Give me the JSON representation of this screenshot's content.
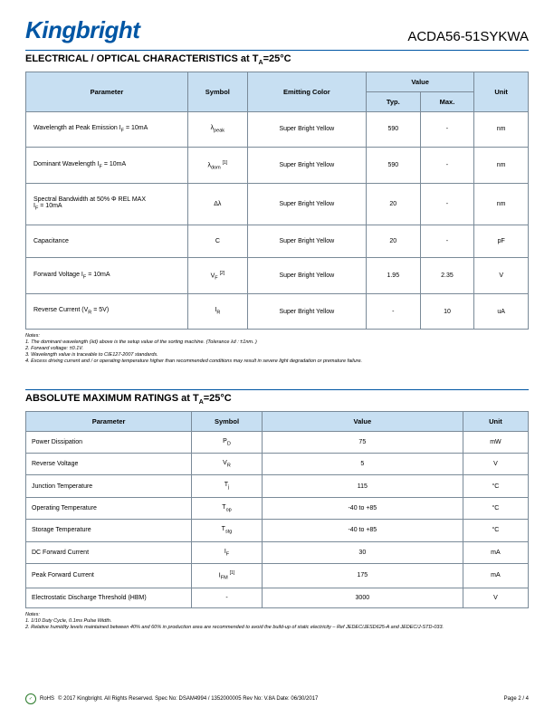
{
  "header": {
    "logo_text": "Kingbright",
    "part_number": "ACDA56-51SYKWA"
  },
  "section1": {
    "title_prefix": "ELECTRICAL / OPTICAL CHARACTERISTICS at T",
    "title_sub": "A",
    "title_suffix": "=25°C",
    "headers": {
      "parameter": "Parameter",
      "symbol": "Symbol",
      "emitting_color": "Emitting Color",
      "value": "Value",
      "typ": "Typ.",
      "max": "Max.",
      "unit": "Unit"
    },
    "col_widths": {
      "parameter": "30%",
      "symbol": "11%",
      "emitting_color": "22%",
      "typ": "10%",
      "max": "10%",
      "unit": "10%"
    },
    "header_bg": "#c7dff2",
    "border_color": "#7a8a98",
    "rows": [
      {
        "parameter_html": "Wavelength at Peak Emission I<span class='sub'>F</span> = 10mA",
        "symbol_html": "λ<span class='sub'>peak</span>",
        "color": "Super Bright Yellow",
        "typ": "590",
        "max": "-",
        "unit": "nm"
      },
      {
        "parameter_html": "Dominant Wavelength I<span class='sub'>F</span> = 10mA",
        "symbol_html": "λ<span class='sub'>dom</span> <span class='sup'>[1]</span>",
        "color": "Super Bright Yellow",
        "typ": "590",
        "max": "-",
        "unit": "nm"
      },
      {
        "parameter_html": "Spectral Bandwidth at 50% Φ REL MAX<br>I<span class='sub'>F</span> = 10mA",
        "symbol_html": "Δλ",
        "color": "Super Bright Yellow",
        "typ": "20",
        "max": "-",
        "unit": "nm"
      },
      {
        "parameter_html": "Capacitance",
        "symbol_html": "C",
        "color": "Super Bright Yellow",
        "typ": "20",
        "max": "-",
        "unit": "pF"
      },
      {
        "parameter_html": "Forward Voltage I<span class='sub'>F</span> = 10mA",
        "symbol_html": "V<span class='sub'>F</span> <span class='sup'>[2]</span>",
        "color": "Super Bright Yellow",
        "typ": "1.95",
        "max": "2.35",
        "unit": "V"
      },
      {
        "parameter_html": "Reverse Current (V<span class='sub'>R</span> = 5V)",
        "symbol_html": "I<span class='sub'>R</span>",
        "color": "Super Bright Yellow",
        "typ": "-",
        "max": "10",
        "unit": "uA"
      }
    ],
    "notes": [
      "Notes:",
      "1. The dominant wavelength (λd) above is the setup value of the sorting machine. (Tolerance λd : ±1nm. )",
      "2. Forward voltage: ±0.1V.",
      "3. Wavelength value is traceable to CIE127-2007 standards.",
      "4. Excess driving current and / or operating temperature higher than recommended conditions may result in severe light degradation or premature failure."
    ]
  },
  "section2": {
    "title_prefix": "ABSOLUTE MAXIMUM RATINGS at T",
    "title_sub": "A",
    "title_suffix": "=25°C",
    "headers": {
      "parameter": "Parameter",
      "symbol": "Symbol",
      "value": "Value",
      "unit": "Unit"
    },
    "col_widths": {
      "parameter": "33%",
      "symbol": "14%",
      "value": "40%",
      "unit": "13%"
    },
    "rows": [
      {
        "parameter": "Power Dissipation",
        "symbol_html": "P<span class='sub'>D</span>",
        "value": "75",
        "unit": "mW"
      },
      {
        "parameter": "Reverse Voltage",
        "symbol_html": "V<span class='sub'>R</span>",
        "value": "5",
        "unit": "V"
      },
      {
        "parameter": "Junction Temperature",
        "symbol_html": "T<span class='sub'>j</span>",
        "value": "115",
        "unit": "°C"
      },
      {
        "parameter": "Operating Temperature",
        "symbol_html": "T<span class='sub'>op</span>",
        "value": "-40 to +85",
        "unit": "°C"
      },
      {
        "parameter": "Storage Temperature",
        "symbol_html": "T<span class='sub'>stg</span>",
        "value": "-40 to +85",
        "unit": "°C"
      },
      {
        "parameter": "DC Forward Current",
        "symbol_html": "I<span class='sub'>F</span>",
        "value": "30",
        "unit": "mA"
      },
      {
        "parameter": "Peak Forward Current",
        "symbol_html": "I<span class='sub'>FM</span> <span class='sup'>[1]</span>",
        "value": "175",
        "unit": "mA"
      },
      {
        "parameter": "Electrostatic Discharge Threshold (HBM)",
        "symbol_html": "-",
        "value": "3000",
        "unit": "V"
      }
    ],
    "notes": [
      "Notes:",
      "1. 1/10 Duty Cycle, 0.1ms Pulse Width.",
      "2. Relative humidity levels maintained between 40% and 60% in production area are recommended to avoid the build-up of static electricity – Ref JEDEC/JESD625-A and JEDEC/J-STD-033."
    ]
  },
  "footer": {
    "rohs": "RoHS",
    "copyright": "© 2017 Kingbright. All Rights Reserved.   Spec No: DSAM4994 / 1352000005   Rev No: V.8A   Date: 06/30/2017",
    "page": "Page  2 / 4"
  },
  "colors": {
    "brand_blue": "#0056a4",
    "header_bg": "#c7dff2",
    "border": "#7a8a98"
  }
}
